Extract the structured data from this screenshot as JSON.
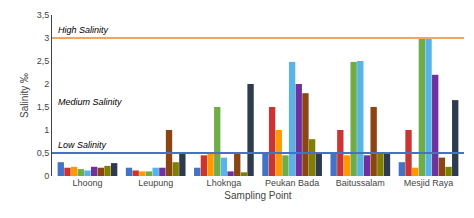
{
  "chart_data": {
    "type": "bar",
    "xlabel": "Sampling Point",
    "ylabel": "Salinity ‰",
    "categories": [
      "Lhoong",
      "Leupung",
      "Lhoknga",
      "Peukan Bada",
      "Baitussalam",
      "Mesjid Raya"
    ],
    "series": [
      {
        "color": "#4472C4",
        "values": [
          0.3,
          0.18,
          0.18,
          0.48,
          0.48,
          0.3
        ]
      },
      {
        "color": "#CC3333",
        "values": [
          0.18,
          0.12,
          0.45,
          1.5,
          1.0,
          1.0
        ]
      },
      {
        "color": "#FF9900",
        "values": [
          0.2,
          0.1,
          0.48,
          1.0,
          0.45,
          0.18
        ]
      },
      {
        "color": "#70AD47",
        "values": [
          0.15,
          0.1,
          1.5,
          0.45,
          2.48,
          3.0
        ]
      },
      {
        "color": "#56B4E9",
        "values": [
          0.12,
          0.18,
          0.4,
          2.48,
          2.5,
          3.0
        ]
      },
      {
        "color": "#7030A0",
        "values": [
          0.2,
          0.18,
          0.1,
          2.0,
          0.45,
          2.2
        ]
      },
      {
        "color": "#8B4513",
        "values": [
          0.18,
          1.0,
          0.48,
          1.8,
          1.5,
          0.4
        ]
      },
      {
        "color": "#808000",
        "values": [
          0.22,
          0.3,
          0.08,
          0.8,
          0.48,
          0.2
        ]
      },
      {
        "color": "#2E3A4E",
        "values": [
          0.28,
          0.48,
          2.0,
          0.5,
          0.5,
          1.65
        ]
      }
    ],
    "reference_lines": [
      {
        "value": 3.0,
        "color": "#F4A460",
        "label": "High Salinity"
      },
      {
        "value": 0.5,
        "color": "#4472C4",
        "label": "Low Salinity"
      }
    ],
    "annotations": [
      {
        "text": "Medium Salinity",
        "y": 1.6
      }
    ],
    "ylim": [
      0,
      3.5
    ],
    "yticks": [
      0,
      {
        "value": 0.5,
        "label": "0,5"
      },
      1,
      {
        "value": 1.5,
        "label": "1,5"
      },
      2,
      {
        "value": 2.5,
        "label": "2,5"
      },
      3,
      {
        "value": 3.5,
        "label": "3,5"
      }
    ],
    "grid": false
  }
}
